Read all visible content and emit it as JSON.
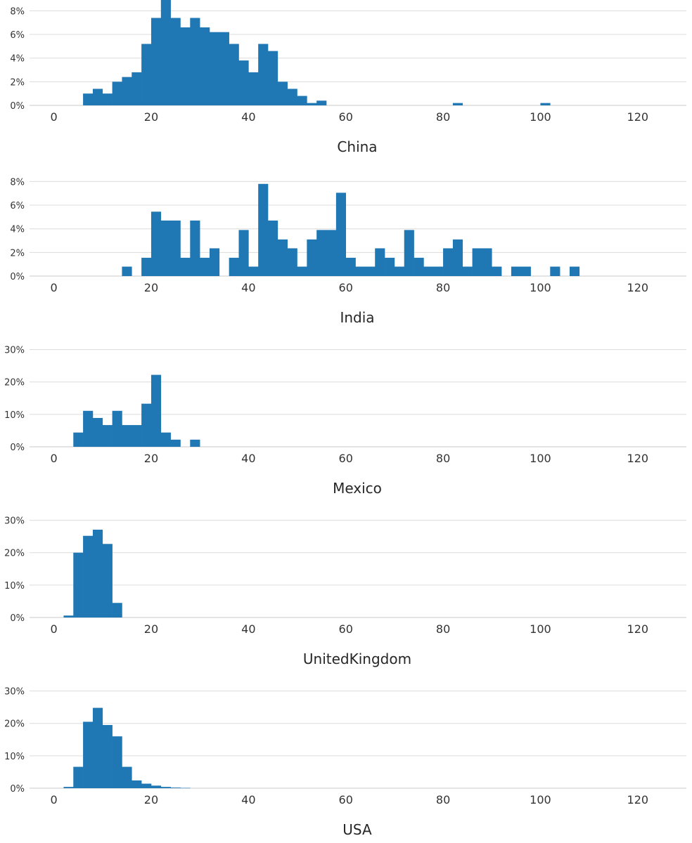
{
  "colors": {
    "bar": "#1f77b4",
    "grid": "#dcdcdc",
    "text": "#333333"
  },
  "chart_data": [
    {
      "type": "bar",
      "title": "China",
      "bin_width": 2,
      "x_ticks": [
        "0",
        "20",
        "40",
        "60",
        "80",
        "100",
        "120"
      ],
      "x_tick_values": [
        0,
        20,
        40,
        60,
        80,
        100,
        120
      ],
      "xlim": [
        -5,
        130
      ],
      "ylim": [
        0,
        8.5
      ],
      "y_ticks": [
        "0%",
        "2%",
        "4%",
        "6%",
        "8%"
      ],
      "y_tick_values": [
        0,
        2,
        4,
        6,
        8
      ],
      "bins": [
        6,
        8,
        10,
        12,
        14,
        16,
        18,
        20,
        22,
        24,
        26,
        28,
        30,
        32,
        34,
        36,
        38,
        40,
        42,
        44,
        46,
        48,
        50,
        52,
        54,
        82,
        100
      ],
      "values": [
        1.0,
        1.4,
        1.0,
        2.0,
        2.4,
        2.8,
        5.2,
        7.4,
        9.0,
        7.4,
        6.6,
        7.4,
        6.6,
        6.2,
        6.2,
        5.2,
        3.8,
        2.8,
        5.2,
        4.6,
        2.0,
        1.4,
        0.8,
        0.2,
        0.4,
        0.2,
        0.2
      ]
    },
    {
      "type": "bar",
      "title": "India",
      "bin_width": 2,
      "x_ticks": [
        "0",
        "20",
        "40",
        "60",
        "80",
        "100",
        "120"
      ],
      "x_tick_values": [
        0,
        20,
        40,
        60,
        80,
        100,
        120
      ],
      "xlim": [
        -5,
        130
      ],
      "ylim": [
        0,
        8.5
      ],
      "y_ticks": [
        "0%",
        "2%",
        "4%",
        "6%",
        "8%"
      ],
      "y_tick_values": [
        0,
        2,
        4,
        6,
        8
      ],
      "bins": [
        14,
        18,
        20,
        22,
        24,
        26,
        28,
        30,
        32,
        36,
        38,
        40,
        42,
        44,
        46,
        48,
        50,
        52,
        54,
        56,
        58,
        60,
        62,
        64,
        66,
        68,
        70,
        72,
        74,
        76,
        78,
        80,
        82,
        84,
        86,
        88,
        90,
        94,
        96,
        102,
        106
      ],
      "values": [
        0.8,
        1.55,
        5.45,
        4.7,
        4.7,
        1.55,
        4.7,
        1.55,
        2.35,
        1.55,
        3.9,
        0.8,
        7.8,
        4.7,
        3.1,
        2.35,
        0.8,
        3.1,
        3.9,
        3.9,
        7.05,
        1.55,
        0.8,
        0.8,
        2.35,
        1.55,
        0.8,
        3.9,
        1.55,
        0.8,
        0.8,
        2.35,
        3.1,
        0.8,
        2.35,
        2.35,
        0.8,
        0.8,
        0.8,
        0.8,
        0.8
      ]
    },
    {
      "type": "bar",
      "title": "Mexico",
      "bin_width": 2,
      "x_ticks": [
        "0",
        "20",
        "40",
        "60",
        "80",
        "100",
        "120"
      ],
      "x_tick_values": [
        0,
        20,
        40,
        60,
        80,
        100,
        120
      ],
      "xlim": [
        -5,
        130
      ],
      "ylim": [
        0,
        31
      ],
      "y_ticks": [
        "0%",
        "10%",
        "20%",
        "30%"
      ],
      "y_tick_values": [
        0,
        10,
        20,
        30
      ],
      "bins": [
        4,
        6,
        8,
        10,
        12,
        14,
        16,
        18,
        20,
        22,
        24,
        28
      ],
      "values": [
        4.4,
        11.1,
        8.9,
        6.7,
        11.1,
        6.7,
        6.7,
        13.3,
        22.2,
        4.4,
        2.2,
        2.2
      ]
    },
    {
      "type": "bar",
      "title": "UnitedKingdom",
      "bin_width": 2,
      "x_ticks": [
        "0",
        "20",
        "40",
        "60",
        "80",
        "100",
        "120"
      ],
      "x_tick_values": [
        0,
        20,
        40,
        60,
        80,
        100,
        120
      ],
      "xlim": [
        -5,
        130
      ],
      "ylim": [
        0,
        31
      ],
      "y_ticks": [
        "0%",
        "10%",
        "20%",
        "30%"
      ],
      "y_tick_values": [
        0,
        10,
        20,
        30
      ],
      "bins": [
        2,
        4,
        6,
        8,
        10,
        12
      ],
      "values": [
        0.6,
        20.0,
        25.2,
        27.1,
        22.7,
        4.5
      ]
    },
    {
      "type": "bar",
      "title": "USA",
      "bin_width": 2,
      "x_ticks": [
        "0",
        "20",
        "40",
        "60",
        "80",
        "100",
        "120"
      ],
      "x_tick_values": [
        0,
        20,
        40,
        60,
        80,
        100,
        120
      ],
      "xlim": [
        -5,
        130
      ],
      "ylim": [
        0,
        31
      ],
      "y_ticks": [
        "0%",
        "10%",
        "20%",
        "30%"
      ],
      "y_tick_values": [
        0,
        10,
        20,
        30
      ],
      "bins": [
        2,
        4,
        6,
        8,
        10,
        12,
        14,
        16,
        18,
        20,
        22,
        24,
        26
      ],
      "values": [
        0.4,
        6.6,
        20.5,
        24.8,
        19.5,
        16.0,
        6.6,
        2.4,
        1.4,
        0.8,
        0.4,
        0.2,
        0.1
      ]
    }
  ]
}
